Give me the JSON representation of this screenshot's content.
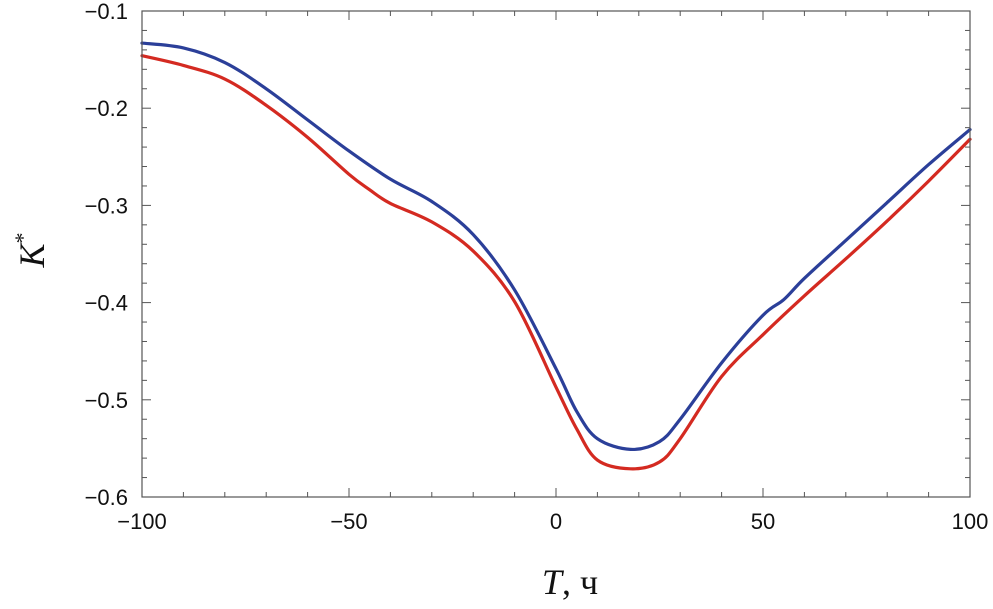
{
  "chart_data": {
    "type": "line",
    "xlabel": {
      "var": "T",
      "rest": ", ч"
    },
    "ylabel": {
      "var": "K",
      "sup": "*"
    },
    "xlim": [
      -100,
      100
    ],
    "ylim": [
      -0.6,
      -0.1
    ],
    "x_ticks": [
      -100,
      -50,
      0,
      50,
      100
    ],
    "x_tick_labels": [
      "−100",
      "−50",
      "0",
      "50",
      "100"
    ],
    "y_ticks": [
      -0.6,
      -0.5,
      -0.4,
      -0.3,
      -0.2,
      -0.1
    ],
    "y_tick_labels": [
      "−0.6",
      "−0.5",
      "−0.4",
      "−0.3",
      "−0.2",
      "−0.1"
    ],
    "grid": false,
    "series": [
      {
        "color": "#2b3f99",
        "points": [
          [
            -100,
            -0.133
          ],
          [
            -90,
            -0.138
          ],
          [
            -80,
            -0.153
          ],
          [
            -70,
            -0.18
          ],
          [
            -60,
            -0.212
          ],
          [
            -50,
            -0.244
          ],
          [
            -40,
            -0.273
          ],
          [
            -30,
            -0.296
          ],
          [
            -20,
            -0.33
          ],
          [
            -10,
            -0.387
          ],
          [
            0,
            -0.468
          ],
          [
            5,
            -0.512
          ],
          [
            10,
            -0.54
          ],
          [
            18,
            -0.551
          ],
          [
            25,
            -0.543
          ],
          [
            30,
            -0.52
          ],
          [
            40,
            -0.462
          ],
          [
            50,
            -0.413
          ],
          [
            55,
            -0.397
          ],
          [
            60,
            -0.375
          ],
          [
            70,
            -0.336
          ],
          [
            80,
            -0.297
          ],
          [
            90,
            -0.258
          ],
          [
            100,
            -0.222
          ]
        ]
      },
      {
        "color": "#d42a21",
        "points": [
          [
            -100,
            -0.146
          ],
          [
            -90,
            -0.156
          ],
          [
            -80,
            -0.17
          ],
          [
            -70,
            -0.197
          ],
          [
            -60,
            -0.23
          ],
          [
            -50,
            -0.268
          ],
          [
            -45,
            -0.284
          ],
          [
            -40,
            -0.298
          ],
          [
            -30,
            -0.317
          ],
          [
            -20,
            -0.347
          ],
          [
            -10,
            -0.399
          ],
          [
            0,
            -0.487
          ],
          [
            5,
            -0.53
          ],
          [
            10,
            -0.562
          ],
          [
            18,
            -0.571
          ],
          [
            25,
            -0.564
          ],
          [
            30,
            -0.54
          ],
          [
            40,
            -0.476
          ],
          [
            50,
            -0.433
          ],
          [
            60,
            -0.393
          ],
          [
            70,
            -0.355
          ],
          [
            80,
            -0.316
          ],
          [
            90,
            -0.275
          ],
          [
            100,
            -0.232
          ]
        ]
      }
    ]
  }
}
